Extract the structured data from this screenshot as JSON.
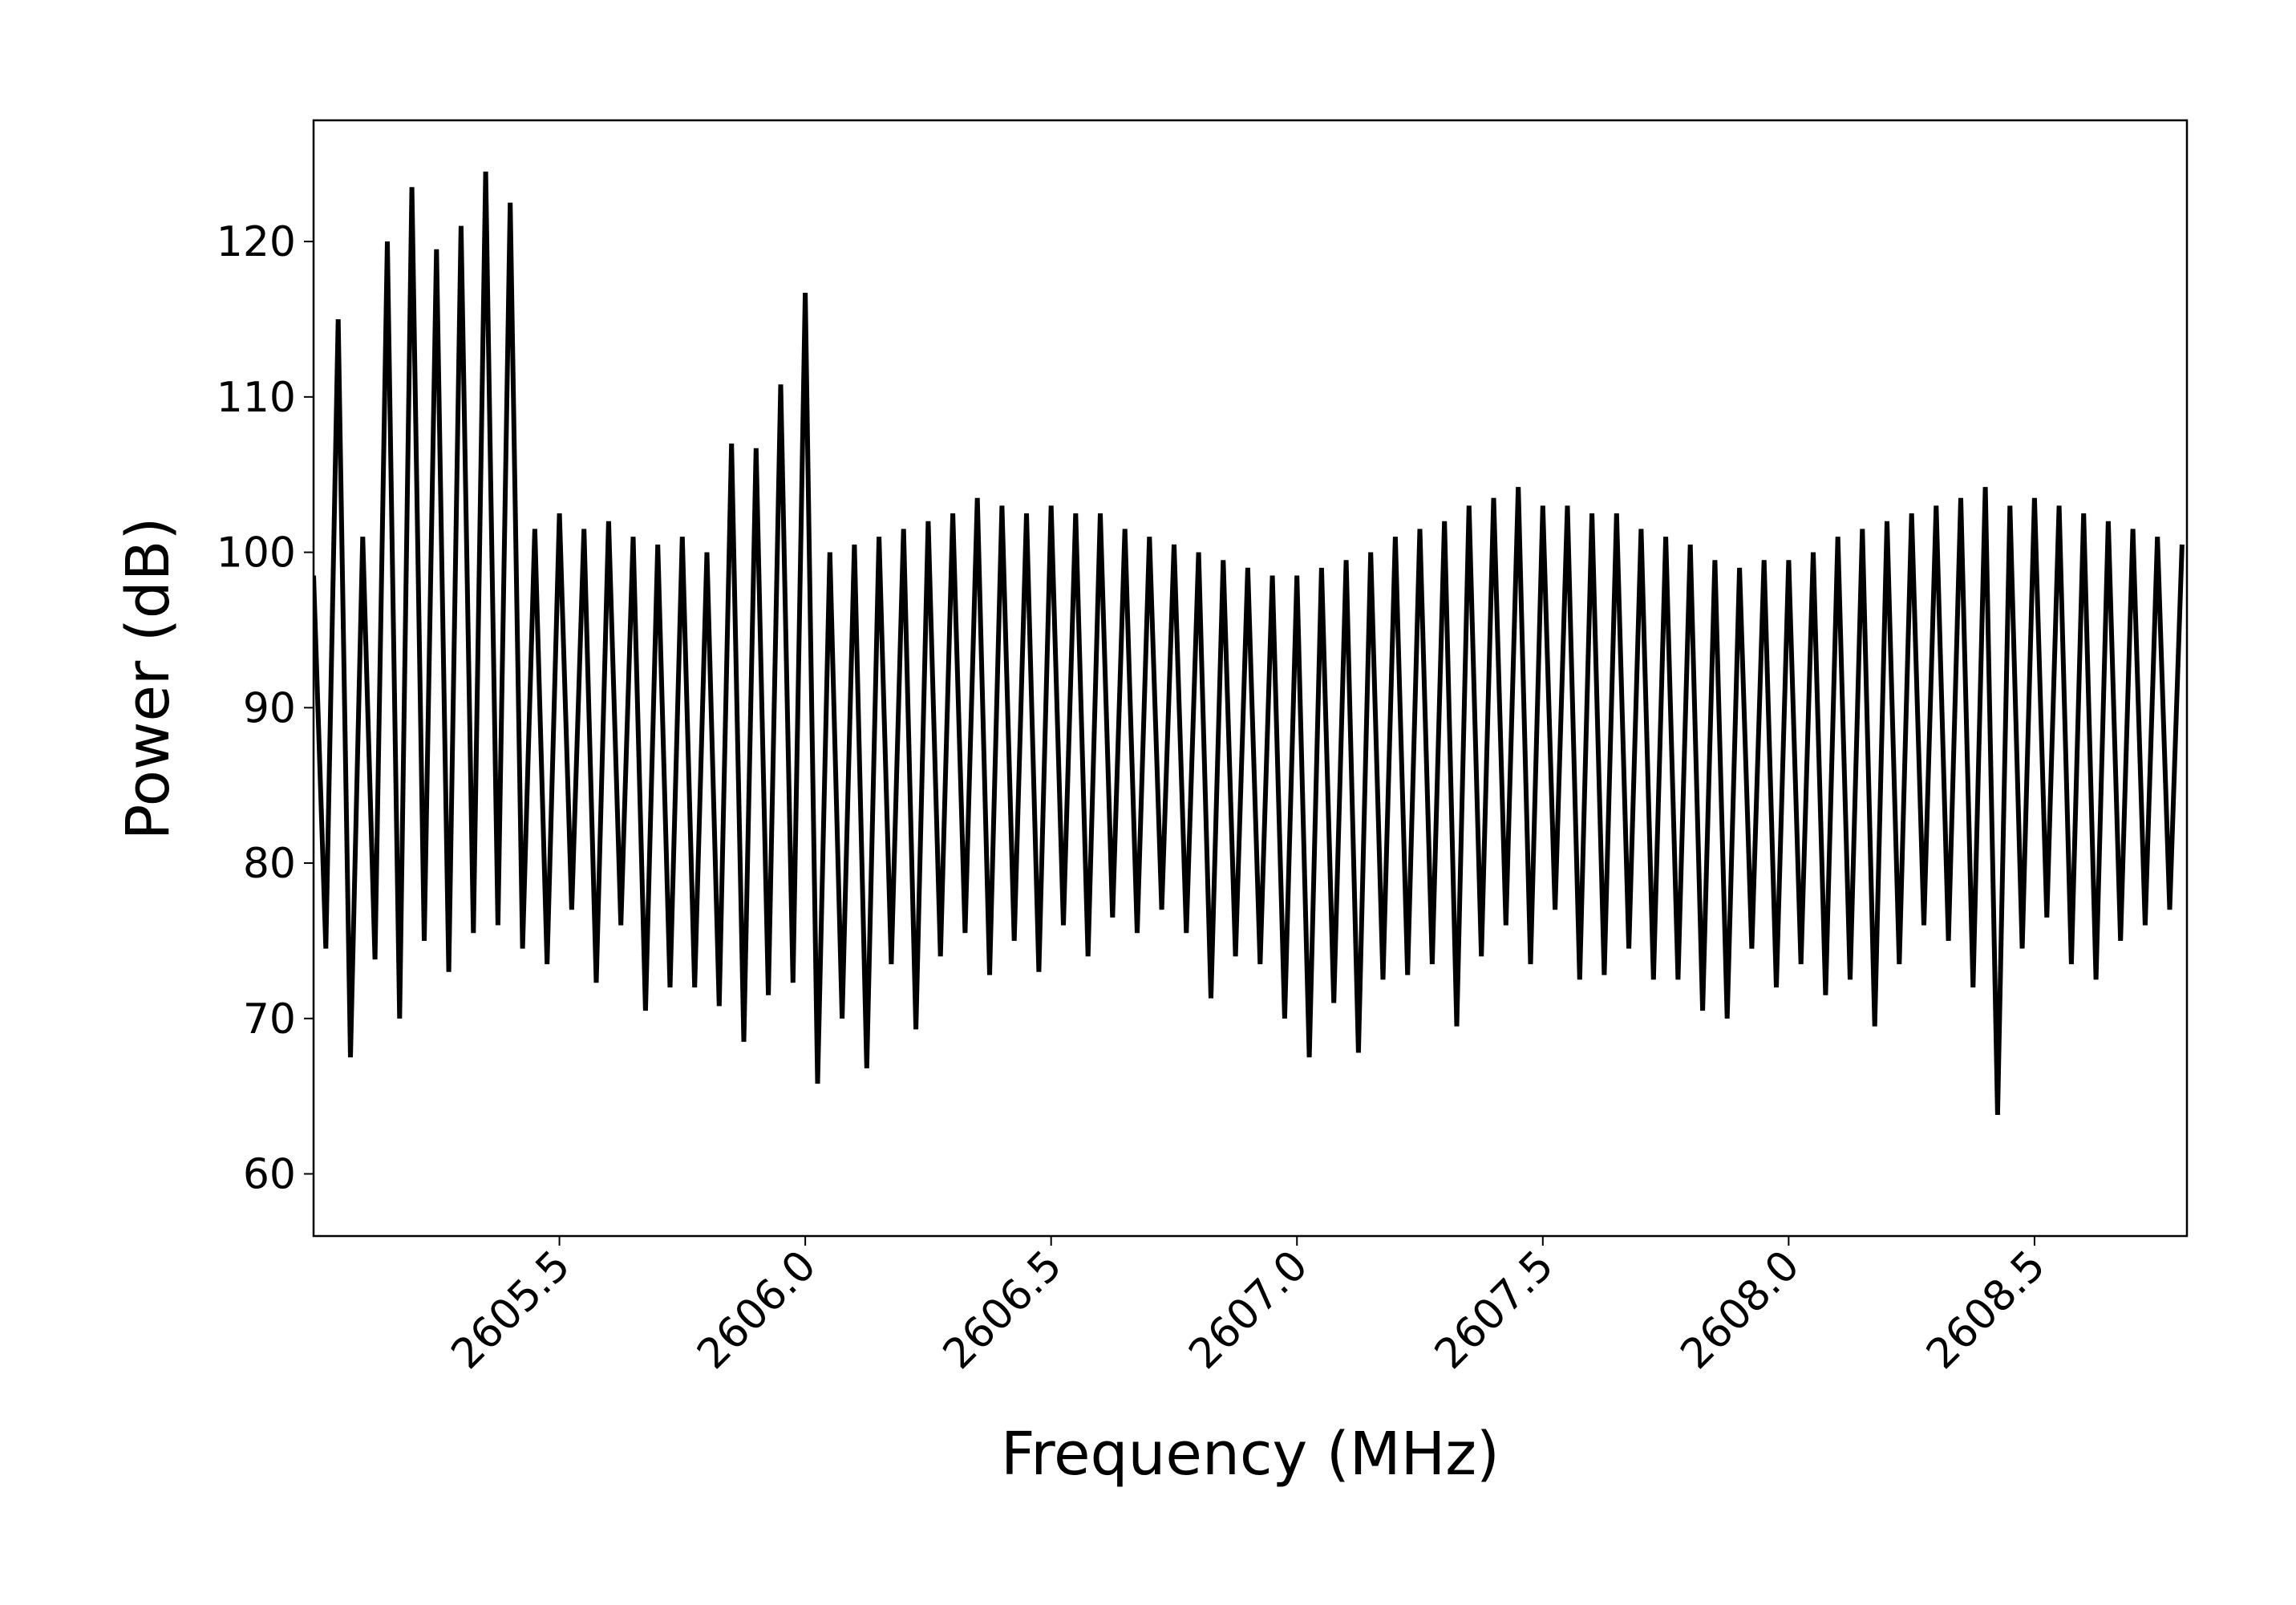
{
  "chart_data": {
    "type": "line",
    "x_label": "Frequency (MHz)",
    "y_label": "Power (dB)",
    "color": "#000000",
    "xlim": [
      2605.0,
      2608.81
    ],
    "ylim": [
      56.0,
      127.8
    ],
    "xticks": [
      2605.5,
      {
        "value": 2606,
        "label": "2606.0"
      },
      2606.5,
      {
        "value": 2607,
        "label": "2607.0"
      },
      2607.5,
      {
        "value": 2608,
        "label": "2608.0"
      },
      2608.5
    ],
    "yticks": [
      60,
      70,
      80,
      90,
      100,
      110,
      120
    ],
    "x": [
      2605,
      2605.025,
      2605.05,
      2605.075,
      2605.1,
      2605.125,
      2605.15,
      2605.175,
      2605.2,
      2605.225,
      2605.25,
      2605.275,
      2605.3,
      2605.325,
      2605.35,
      2605.375,
      2605.4,
      2605.425,
      2605.45,
      2605.475,
      2605.5,
      2605.525,
      2605.55,
      2605.575,
      2605.6,
      2605.625,
      2605.65,
      2605.675,
      2605.7,
      2605.725,
      2605.75,
      2605.775,
      2605.8,
      2605.825,
      2605.85,
      2605.875,
      2605.9,
      2605.925,
      2605.95,
      2605.975,
      2606,
      2606.025,
      2606.05,
      2606.075,
      2606.1,
      2606.125,
      2606.15,
      2606.175,
      2606.2,
      2606.225,
      2606.25,
      2606.275,
      2606.3,
      2606.325,
      2606.35,
      2606.375,
      2606.4,
      2606.425,
      2606.45,
      2606.475,
      2606.5,
      2606.525,
      2606.55,
      2606.575,
      2606.6,
      2606.625,
      2606.65,
      2606.675,
      2606.7,
      2606.725,
      2606.75,
      2606.775,
      2606.8,
      2606.825,
      2606.85,
      2606.875,
      2606.9,
      2606.925,
      2606.95,
      2606.975,
      2607,
      2607.025,
      2607.05,
      2607.075,
      2607.1,
      2607.125,
      2607.15,
      2607.175,
      2607.2,
      2607.225,
      2607.25,
      2607.275,
      2607.3,
      2607.325,
      2607.35,
      2607.375,
      2607.4,
      2607.425,
      2607.45,
      2607.475,
      2607.5,
      2607.525,
      2607.55,
      2607.575,
      2607.6,
      2607.625,
      2607.65,
      2607.675,
      2607.7,
      2607.725,
      2607.75,
      2607.775,
      2607.8,
      2607.825,
      2607.85,
      2607.875,
      2607.9,
      2607.925,
      2607.95,
      2607.975,
      2608,
      2608.025,
      2608.05,
      2608.075,
      2608.1,
      2608.125,
      2608.15,
      2608.175,
      2608.2,
      2608.225,
      2608.25,
      2608.275,
      2608.3,
      2608.325,
      2608.35,
      2608.375,
      2608.4,
      2608.425,
      2608.45,
      2608.475,
      2608.5,
      2608.525,
      2608.55,
      2608.575,
      2608.6,
      2608.625,
      2608.65,
      2608.675,
      2608.7,
      2608.725,
      2608.75,
      2608.775,
      2608.8
    ],
    "values": [
      98.5,
      74.5,
      115,
      67.5,
      101,
      73.8,
      120,
      70,
      123.5,
      75,
      119.5,
      73,
      121,
      75.5,
      124.5,
      76,
      122.5,
      74.5,
      101.5,
      73.5,
      102.5,
      77,
      101.5,
      72.3,
      102,
      76,
      101,
      70.5,
      100.5,
      72,
      101,
      72,
      100,
      70.8,
      107,
      68.5,
      106.7,
      71.5,
      110.8,
      72.3,
      116.7,
      65.8,
      100,
      70,
      100.5,
      66.8,
      101,
      73.5,
      101.5,
      69.3,
      102,
      74,
      102.5,
      75.5,
      103.5,
      72.8,
      103,
      75,
      102.5,
      73,
      103,
      76,
      102.5,
      74,
      102.5,
      76.5,
      101.5,
      75.5,
      101,
      77,
      100.5,
      75.5,
      100,
      71.3,
      99.5,
      74,
      99,
      73.5,
      98.5,
      70,
      98.5,
      67.5,
      99,
      71,
      99.5,
      67.8,
      100,
      72.5,
      101,
      72.8,
      101.5,
      73.5,
      102,
      69.5,
      103,
      74,
      103.5,
      76,
      104.2,
      73.5,
      103,
      77,
      103,
      72.5,
      102.5,
      72.8,
      102.5,
      74.5,
      101.5,
      72.5,
      101,
      72.5,
      100.5,
      70.5,
      99.5,
      70,
      99,
      74.5,
      99.5,
      72,
      99.5,
      73.5,
      100,
      71.5,
      101,
      72.5,
      101.5,
      69.5,
      102,
      73.5,
      102.5,
      76,
      103,
      75,
      103.5,
      72,
      104.2,
      63.8,
      103,
      74.5,
      103.5,
      76.5,
      103,
      73.5,
      102.5,
      72.5,
      102,
      75,
      101.5,
      76,
      101,
      77,
      100.5
    ]
  }
}
